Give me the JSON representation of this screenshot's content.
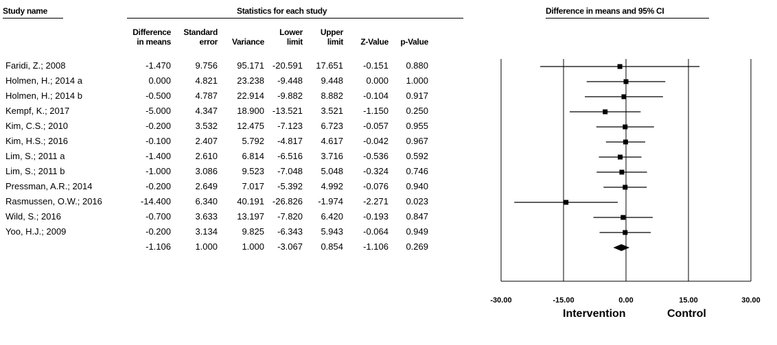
{
  "headers": {
    "study_name": "Study name",
    "statistics": "Statistics for each study",
    "forest": "Difference in means and 95% CI"
  },
  "columns": [
    {
      "line1": "Difference",
      "line2": "in means"
    },
    {
      "line1": "Standard",
      "line2": "error"
    },
    {
      "line1": "",
      "line2": "Variance"
    },
    {
      "line1": "Lower",
      "line2": "limit"
    },
    {
      "line1": "Upper",
      "line2": "limit"
    },
    {
      "line1": "",
      "line2": "Z-Value"
    },
    {
      "line1": "",
      "line2": "p-Value"
    }
  ],
  "rows": [
    {
      "name": "Faridi, Z.; 2008",
      "cells": [
        "-1.470",
        "9.756",
        "95.171",
        "-20.591",
        "17.651",
        "-0.151",
        "0.880"
      ]
    },
    {
      "name": "Holmen, H.; 2014 a",
      "cells": [
        "0.000",
        "4.821",
        "23.238",
        "-9.448",
        "9.448",
        "0.000",
        "1.000"
      ]
    },
    {
      "name": "Holmen, H.; 2014 b",
      "cells": [
        "-0.500",
        "4.787",
        "22.914",
        "-9.882",
        "8.882",
        "-0.104",
        "0.917"
      ]
    },
    {
      "name": "Kempf, K.; 2017",
      "cells": [
        "-5.000",
        "4.347",
        "18.900",
        "-13.521",
        "3.521",
        "-1.150",
        "0.250"
      ]
    },
    {
      "name": "Kim, C.S.; 2010",
      "cells": [
        "-0.200",
        "3.532",
        "12.475",
        "-7.123",
        "6.723",
        "-0.057",
        "0.955"
      ]
    },
    {
      "name": "Kim, H.S.; 2016",
      "cells": [
        "-0.100",
        "2.407",
        "5.792",
        "-4.817",
        "4.617",
        "-0.042",
        "0.967"
      ]
    },
    {
      "name": "Lim, S.; 2011 a",
      "cells": [
        "-1.400",
        "2.610",
        "6.814",
        "-6.516",
        "3.716",
        "-0.536",
        "0.592"
      ]
    },
    {
      "name": "Lim, S.; 2011 b",
      "cells": [
        "-1.000",
        "3.086",
        "9.523",
        "-7.048",
        "5.048",
        "-0.324",
        "0.746"
      ]
    },
    {
      "name": "Pressman, A.R.; 2014",
      "cells": [
        "-0.200",
        "2.649",
        "7.017",
        "-5.392",
        "4.992",
        "-0.076",
        "0.940"
      ]
    },
    {
      "name": "Rasmussen, O.W.; 2016",
      "cells": [
        "-14.400",
        "6.340",
        "40.191",
        "-26.826",
        "-1.974",
        "-2.271",
        "0.023"
      ]
    },
    {
      "name": "Wild, S.; 2016",
      "cells": [
        "-0.700",
        "3.633",
        "13.197",
        "-7.820",
        "6.420",
        "-0.193",
        "0.847"
      ]
    },
    {
      "name": "Yoo, H.J.; 2009",
      "cells": [
        "-0.200",
        "3.134",
        "9.825",
        "-6.343",
        "5.943",
        "-0.064",
        "0.949"
      ]
    },
    {
      "name": "",
      "cells": [
        "-1.106",
        "1.000",
        "1.000",
        "-3.067",
        "0.854",
        "-1.106",
        "0.269"
      ]
    }
  ],
  "side_labels": {
    "left": "Intervention",
    "right": "Control"
  },
  "chart_data": {
    "type": "forest",
    "xlim": [
      -30,
      30
    ],
    "ticks": [
      -30,
      -15,
      0,
      15,
      30
    ],
    "tick_labels": [
      "-30.00",
      "-15.00",
      "0.00",
      "15.00",
      "30.00"
    ],
    "studies": [
      {
        "mean": -1.47,
        "lower": -20.591,
        "upper": 17.651
      },
      {
        "mean": 0.0,
        "lower": -9.448,
        "upper": 9.448
      },
      {
        "mean": -0.5,
        "lower": -9.882,
        "upper": 8.882
      },
      {
        "mean": -5.0,
        "lower": -13.521,
        "upper": 3.521
      },
      {
        "mean": -0.2,
        "lower": -7.123,
        "upper": 6.723
      },
      {
        "mean": -0.1,
        "lower": -4.817,
        "upper": 4.617
      },
      {
        "mean": -1.4,
        "lower": -6.516,
        "upper": 3.716
      },
      {
        "mean": -1.0,
        "lower": -7.048,
        "upper": 5.048
      },
      {
        "mean": -0.2,
        "lower": -5.392,
        "upper": 4.992
      },
      {
        "mean": -14.4,
        "lower": -26.826,
        "upper": -1.974
      },
      {
        "mean": -0.7,
        "lower": -7.82,
        "upper": 6.42
      },
      {
        "mean": -0.2,
        "lower": -6.343,
        "upper": 5.943
      }
    ],
    "summary": {
      "mean": -1.106,
      "lower": -3.067,
      "upper": 0.854
    }
  }
}
